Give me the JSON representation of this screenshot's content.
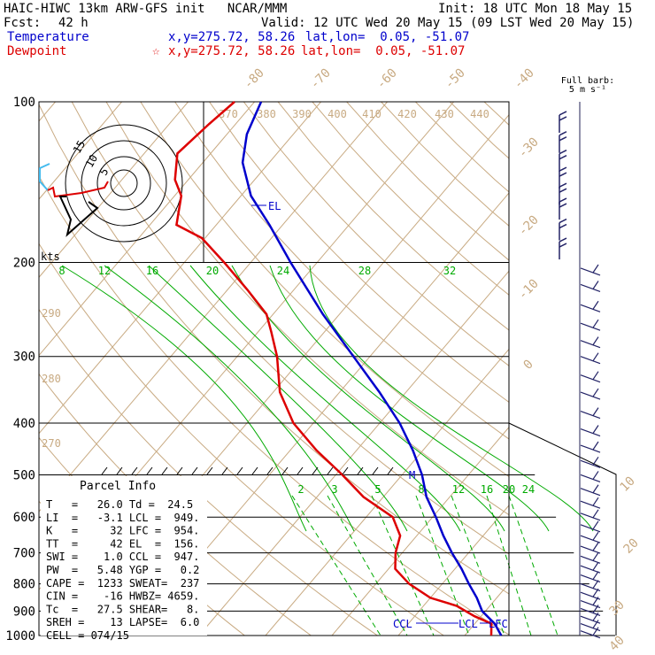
{
  "header": {
    "title": "HAIC-HIWC 13km ARW-GFS init   NCAR/MMM",
    "init": "Init: 18 UTC Mon 18 May 15",
    "fcst_label": "Fcst:",
    "fcst_value": "42 h",
    "valid": "Valid: 12 UTC Wed 20 May 15 (09 LST Wed 20 May 15)",
    "temp_label": "Temperature",
    "temp_xy": "x,y=275.72, 58.26",
    "temp_latlon": "lat,lon=  0.05, -51.07",
    "dew_label": "Dewpoint",
    "dew_marker": "☆",
    "dew_xy": "x,y=275.72, 58.26",
    "dew_latlon": "lat,lon=  0.05, -51.07"
  },
  "colors": {
    "temperature": "#0000cc",
    "dewpoint": "#dd0000",
    "isotherm": "#c8aa82",
    "mixing_ratio": "#00aa00",
    "isobar": "#000000"
  },
  "wind_legend": {
    "line1": "Full barb:",
    "line2": "5 m s⁻¹"
  },
  "hodograph": {
    "rings": [
      "5",
      "10",
      "15"
    ],
    "units": "kts"
  },
  "parcel_info": {
    "title": "Parcel Info",
    "rows": [
      "T   =   26.0 Td =  24.5",
      "LI  =   -3.1 LCL =  949.",
      "K   =     32 LFC =  954.",
      "TT  =     42 EL  =  156.",
      "SWI =    1.0 CCL =  947.",
      "PW  =   5.48 YGP =   0.2",
      "CAPE =  1233 SWEAT=  237",
      "CIN =    -16 HWBZ= 4659.",
      "Tc  =   27.5 SHEAR=   8.",
      "SREH =    13 LAPSE=  6.0",
      "CELL = 074/15"
    ]
  },
  "level_labels": {
    "el": "EL",
    "ccl": "CCL",
    "lcl": "LCL",
    "lfc": "LFC",
    "m": "M"
  },
  "chart_data": {
    "type": "line",
    "subtype": "skew-T log-P sounding",
    "y_axis": {
      "label": "",
      "scale": "log",
      "ticks": [
        100,
        200,
        300,
        400,
        500,
        600,
        700,
        800,
        900,
        1000
      ]
    },
    "isotherm_labels": [
      "-80",
      "-70",
      "-60",
      "-50",
      "-40",
      "-30",
      "-20",
      "-10",
      "0",
      "10",
      "20",
      "30",
      "40"
    ],
    "theta_labels": [
      "370",
      "380",
      "390",
      "400",
      "410",
      "420",
      "430",
      "440",
      "290",
      "280",
      "270"
    ],
    "mixing_ratio_upper_labels": [
      "8",
      "12",
      "16",
      "20",
      "24",
      "28",
      "32"
    ],
    "mixing_ratio_lower_labels": [
      "2",
      "3",
      "5",
      "8",
      "12",
      "16",
      "20",
      "24"
    ],
    "series": [
      {
        "name": "Temperature",
        "points": [
          [
            1000,
            25.5
          ],
          [
            950,
            23
          ],
          [
            900,
            19.5
          ],
          [
            850,
            17
          ],
          [
            800,
            14
          ],
          [
            750,
            11
          ],
          [
            700,
            7.5
          ],
          [
            650,
            4
          ],
          [
            600,
            0.5
          ],
          [
            550,
            -3.5
          ],
          [
            500,
            -7
          ],
          [
            450,
            -11.5
          ],
          [
            400,
            -17
          ],
          [
            350,
            -24
          ],
          [
            300,
            -32.5
          ],
          [
            250,
            -42.5
          ],
          [
            200,
            -54
          ],
          [
            170,
            -62
          ],
          [
            150,
            -68.5
          ],
          [
            130,
            -74
          ],
          [
            115,
            -77
          ],
          [
            100,
            -79
          ]
        ]
      },
      {
        "name": "Dewpoint",
        "points": [
          [
            1000,
            24
          ],
          [
            950,
            22.5
          ],
          [
            920,
            19
          ],
          [
            880,
            15
          ],
          [
            850,
            10
          ],
          [
            800,
            5
          ],
          [
            750,
            1
          ],
          [
            700,
            -1
          ],
          [
            650,
            -2.5
          ],
          [
            600,
            -6
          ],
          [
            550,
            -13
          ],
          [
            500,
            -19
          ],
          [
            450,
            -26
          ],
          [
            400,
            -33
          ],
          [
            350,
            -39
          ],
          [
            300,
            -44
          ],
          [
            270,
            -48
          ],
          [
            250,
            -51
          ],
          [
            225,
            -57
          ],
          [
            200,
            -64
          ],
          [
            180,
            -70.5
          ],
          [
            170,
            -76
          ],
          [
            150,
            -79
          ],
          [
            140,
            -82
          ],
          [
            125,
            -85
          ],
          [
            110,
            -84
          ],
          [
            100,
            -83
          ]
        ]
      }
    ],
    "wind_barbs": {
      "levels": [
        110,
        120,
        130,
        140,
        150,
        160,
        175,
        190,
        205,
        220,
        240,
        260,
        280,
        300,
        325,
        350,
        380,
        410,
        440,
        470,
        500,
        530,
        560,
        590,
        620,
        650,
        680,
        710,
        740,
        770,
        800,
        830,
        860,
        890,
        920,
        950,
        980
      ]
    },
    "hodograph_trace": "low-level winds curving from southwest to northwest"
  }
}
